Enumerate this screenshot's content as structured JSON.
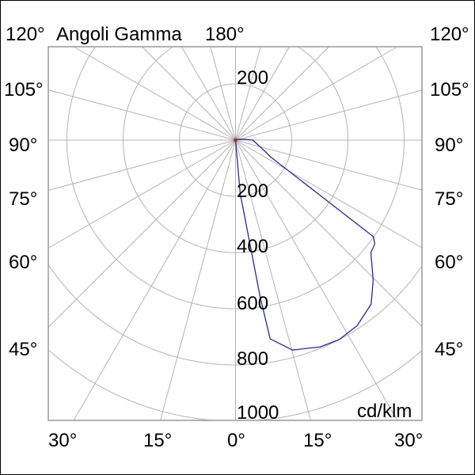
{
  "chart_data": {
    "type": "polar-line",
    "title": "Angoli Gamma",
    "unit": "cd/klm",
    "angle_labels": {
      "top_left": "120°",
      "top_center": "180°",
      "top_right": "120°",
      "left": [
        "105°",
        "90°",
        "75°",
        "60°",
        "45°"
      ],
      "right": [
        "105°",
        "90°",
        "75°",
        "60°",
        "45°"
      ],
      "bottom": [
        "30°",
        "15°",
        "0°",
        "15°",
        "30°"
      ]
    },
    "radial_ticks": [
      200,
      400,
      600,
      800,
      1000
    ],
    "radial_tick_up": "200",
    "radial_tick_labels": [
      "200",
      "400",
      "600",
      "800",
      "1000"
    ],
    "grid": true,
    "angle_grid_step_deg": 15,
    "series": [
      {
        "color": "#2b2b8c",
        "gamma_deg": [
          0,
          5,
          8.9,
          9.9,
          15.2,
          22.3,
          27.5,
          33.3,
          39.6,
          44.5,
          50.3,
          53.3,
          55,
          64.5,
          67.7,
          90,
          95,
          105,
          180
        ],
        "intensity": [
          0,
          190,
          562,
          718,
          774,
          795,
          800,
          789,
          757,
          699,
          626,
          618,
          599,
          137,
          119,
          62,
          34,
          10,
          0
        ]
      }
    ]
  }
}
